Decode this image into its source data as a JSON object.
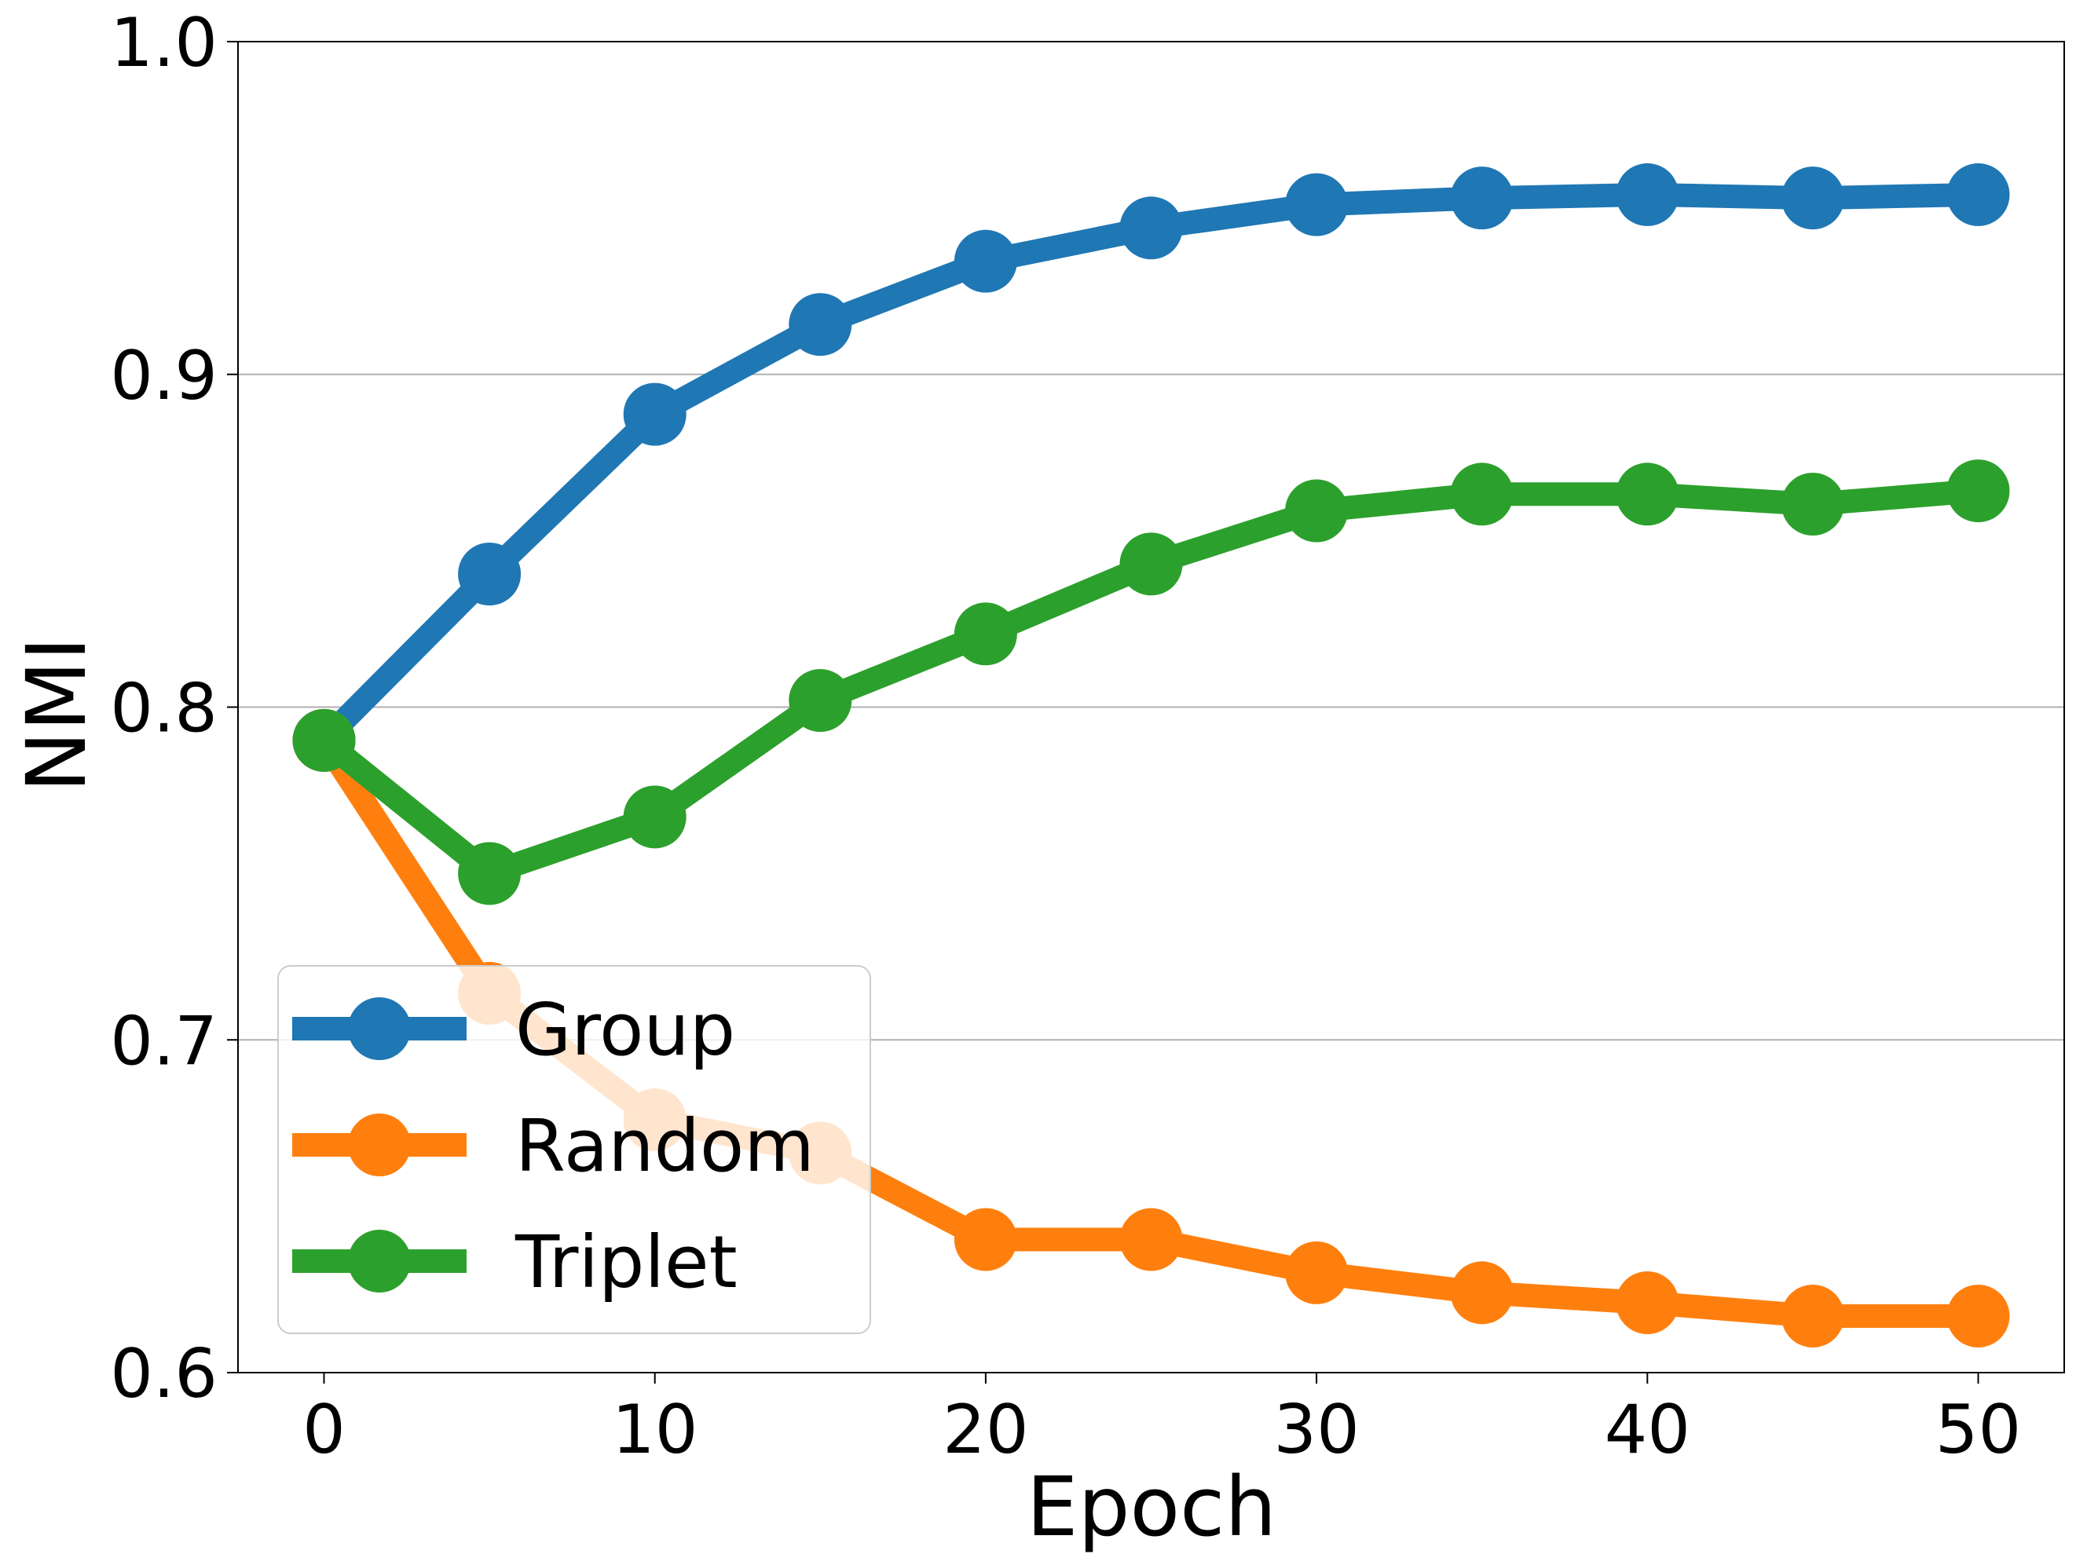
{
  "chart_data": {
    "type": "line",
    "title": "",
    "xlabel": "Epoch",
    "ylabel": "NMI",
    "xlim": [
      -2.6,
      52.6
    ],
    "ylim": [
      0.6,
      1.0
    ],
    "xticks": [
      0,
      10,
      20,
      30,
      40,
      50
    ],
    "yticks": [
      0.6,
      0.7,
      0.8,
      0.9,
      1.0
    ],
    "xtick_labels": [
      "0",
      "10",
      "20",
      "30",
      "40",
      "50"
    ],
    "ytick_labels": [
      "0.6",
      "0.7",
      "0.8",
      "0.9",
      "1.0"
    ],
    "grid": "horizontal",
    "legend_position": "lower-left",
    "x": [
      0,
      5,
      10,
      15,
      20,
      25,
      30,
      35,
      40,
      45,
      50
    ],
    "series": [
      {
        "name": "Group",
        "color": "#1f77b4",
        "values": [
          0.79,
          0.84,
          0.888,
          0.915,
          0.934,
          0.944,
          0.951,
          0.953,
          0.954,
          0.953,
          0.954
        ]
      },
      {
        "name": "Random",
        "color": "#ff7f0e",
        "values": [
          0.79,
          0.714,
          0.676,
          0.666,
          0.64,
          0.64,
          0.63,
          0.624,
          0.621,
          0.617,
          0.617
        ]
      },
      {
        "name": "Triplet",
        "color": "#2ca02c",
        "values": [
          0.79,
          0.75,
          0.767,
          0.802,
          0.822,
          0.843,
          0.859,
          0.864,
          0.864,
          0.861,
          0.865
        ]
      }
    ]
  }
}
